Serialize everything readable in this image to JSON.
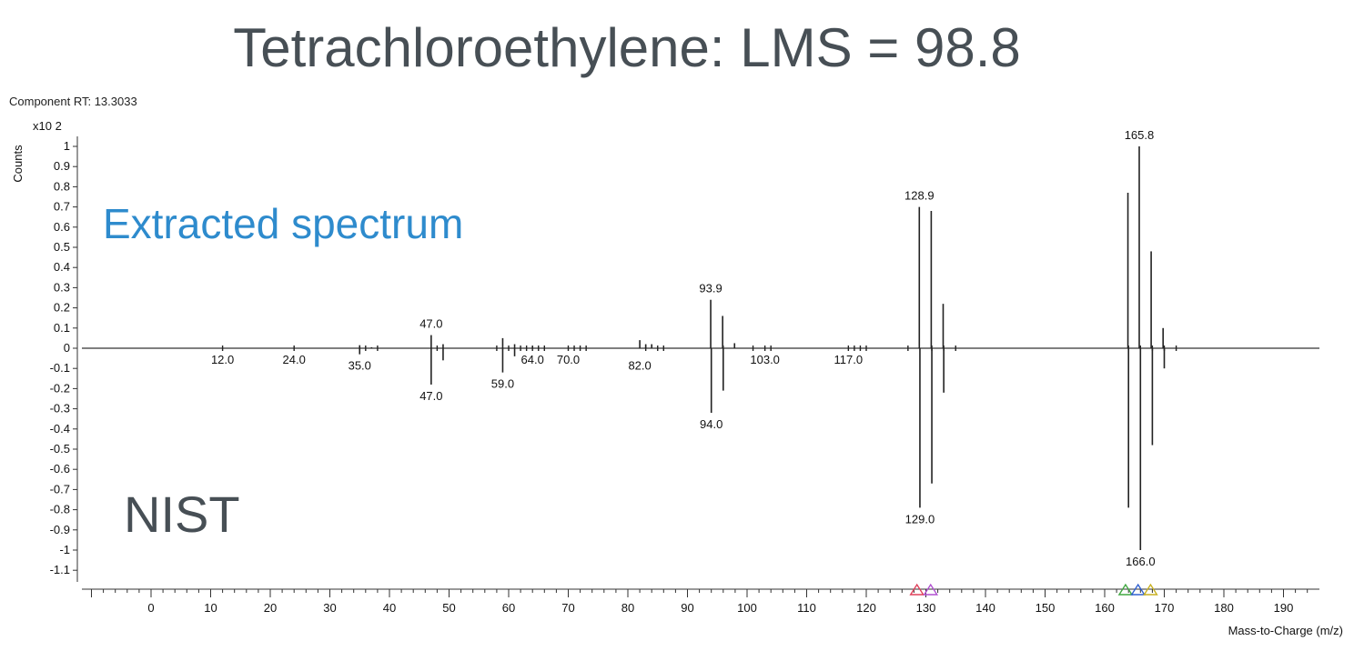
{
  "title": "Tetrachloroethylene: LMS = 98.8",
  "component_rt": "Component RT: 13.3033",
  "colors": {
    "extracted": "#2e8bcd",
    "nist": "#474f55",
    "title": "#474f55"
  },
  "chart_data": {
    "type": "bar",
    "subtype": "mirror-mass-spectrum",
    "title": "Tetrachloroethylene: LMS = 98.8",
    "xlabel": "Mass-to-Charge (m/z)",
    "ylabel": "Counts",
    "y_scale_label": "x10 2",
    "xlim": [
      -10,
      195
    ],
    "ylim": [
      -1.15,
      1.05
    ],
    "x_ticks": [
      0,
      10,
      20,
      30,
      40,
      50,
      60,
      70,
      80,
      90,
      100,
      110,
      120,
      130,
      140,
      150,
      160,
      170,
      180,
      190
    ],
    "y_ticks": [
      {
        "v": 1,
        "t": "1"
      },
      {
        "v": 0.9,
        "t": "0.9"
      },
      {
        "v": 0.8,
        "t": "0.8"
      },
      {
        "v": 0.7,
        "t": "0.7"
      },
      {
        "v": 0.6,
        "t": "0.6"
      },
      {
        "v": 0.5,
        "t": "0.5"
      },
      {
        "v": 0.4,
        "t": "0.4"
      },
      {
        "v": 0.3,
        "t": "0.3"
      },
      {
        "v": 0.2,
        "t": "0.2"
      },
      {
        "v": 0.1,
        "t": "0.1"
      },
      {
        "v": 0,
        "t": "0"
      },
      {
        "v": -0.1,
        "t": "-0.1"
      },
      {
        "v": -0.2,
        "t": "-0.2"
      },
      {
        "v": -0.3,
        "t": "-0.3"
      },
      {
        "v": -0.4,
        "t": "-0.4"
      },
      {
        "v": -0.5,
        "t": "-0.5"
      },
      {
        "v": -0.6,
        "t": "-0.6"
      },
      {
        "v": -0.7,
        "t": "-0.7"
      },
      {
        "v": -0.8,
        "t": "-0.8"
      },
      {
        "v": -0.9,
        "t": "-0.9"
      },
      {
        "v": -1,
        "t": "-1"
      },
      {
        "v": -1.1,
        "t": "-1.1"
      }
    ],
    "series": [
      {
        "name": "Extracted spectrum",
        "points": [
          {
            "x": 35,
            "y": 0.015
          },
          {
            "x": 37,
            "y": 0.005
          },
          {
            "x": 47,
            "y": 0.065
          },
          {
            "x": 49,
            "y": 0.02
          },
          {
            "x": 59,
            "y": 0.05
          },
          {
            "x": 61,
            "y": 0.02
          },
          {
            "x": 64,
            "y": 0.01
          },
          {
            "x": 82,
            "y": 0.04
          },
          {
            "x": 83,
            "y": 0.02
          },
          {
            "x": 84,
            "y": 0.02
          },
          {
            "x": 93.9,
            "y": 0.24
          },
          {
            "x": 95.9,
            "y": 0.16
          },
          {
            "x": 97.9,
            "y": 0.025
          },
          {
            "x": 128.9,
            "y": 0.7
          },
          {
            "x": 130.9,
            "y": 0.68
          },
          {
            "x": 132.9,
            "y": 0.22
          },
          {
            "x": 163.9,
            "y": 0.77
          },
          {
            "x": 165.8,
            "y": 1.0
          },
          {
            "x": 167.8,
            "y": 0.48
          },
          {
            "x": 169.8,
            "y": 0.1
          }
        ]
      },
      {
        "name": "NIST",
        "points": [
          {
            "x": 35,
            "y": -0.03
          },
          {
            "x": 47,
            "y": -0.18
          },
          {
            "x": 49,
            "y": -0.06
          },
          {
            "x": 59,
            "y": -0.12
          },
          {
            "x": 61,
            "y": -0.04
          },
          {
            "x": 94,
            "y": -0.32
          },
          {
            "x": 96,
            "y": -0.21
          },
          {
            "x": 129,
            "y": -0.79
          },
          {
            "x": 131,
            "y": -0.67
          },
          {
            "x": 133,
            "y": -0.22
          },
          {
            "x": 164,
            "y": -0.79
          },
          {
            "x": 166,
            "y": -1.0
          },
          {
            "x": 168,
            "y": -0.48
          },
          {
            "x": 170,
            "y": -0.1
          }
        ]
      }
    ],
    "minor_peaks": [
      12,
      24,
      36,
      38,
      48,
      58,
      60,
      62,
      63,
      64,
      65,
      66,
      70,
      71,
      72,
      73,
      83,
      85,
      86,
      96,
      101,
      103,
      104,
      117,
      118,
      119,
      120,
      127,
      131,
      133,
      135,
      164,
      166,
      168,
      170,
      172
    ],
    "peak_labels_top": [
      {
        "x": 47.0,
        "y": 0.065,
        "text": "47.0"
      },
      {
        "x": 93.9,
        "y": 0.24,
        "text": "93.9"
      },
      {
        "x": 128.9,
        "y": 0.7,
        "text": "128.9"
      },
      {
        "x": 165.8,
        "y": 1.0,
        "text": "165.8"
      }
    ],
    "peak_labels_bottom": [
      {
        "x": 12.0,
        "y": 0,
        "text": "12.0"
      },
      {
        "x": 24.0,
        "y": 0,
        "text": "24.0"
      },
      {
        "x": 35.0,
        "y": -0.03,
        "text": "35.0"
      },
      {
        "x": 47.0,
        "y": -0.18,
        "text": "47.0"
      },
      {
        "x": 59.0,
        "y": -0.12,
        "text": "59.0"
      },
      {
        "x": 64.0,
        "y": 0,
        "text": "64.0"
      },
      {
        "x": 70.0,
        "y": 0,
        "text": "70.0"
      },
      {
        "x": 82.0,
        "y": -0.03,
        "text": "82.0"
      },
      {
        "x": 94.0,
        "y": -0.32,
        "text": "94.0"
      },
      {
        "x": 103.0,
        "y": 0,
        "text": "103.0"
      },
      {
        "x": 117.0,
        "y": 0,
        "text": "117.0"
      },
      {
        "x": 129.0,
        "y": -0.79,
        "text": "129.0"
      },
      {
        "x": 166.0,
        "y": -1.0,
        "text": "166.0"
      }
    ],
    "annotations": [
      {
        "text": "Extracted spectrum",
        "color": "#2e8bcd"
      },
      {
        "text": "NIST",
        "color": "#474f55"
      }
    ],
    "markers": [
      {
        "x": 128.5,
        "color": "#e0405a"
      },
      {
        "x": 130.8,
        "color": "#b050d0"
      },
      {
        "x": 163.5,
        "color": "#40a840"
      },
      {
        "x": 165.6,
        "color": "#3060d0"
      },
      {
        "x": 167.7,
        "color": "#c8b020"
      }
    ],
    "grid": false
  }
}
